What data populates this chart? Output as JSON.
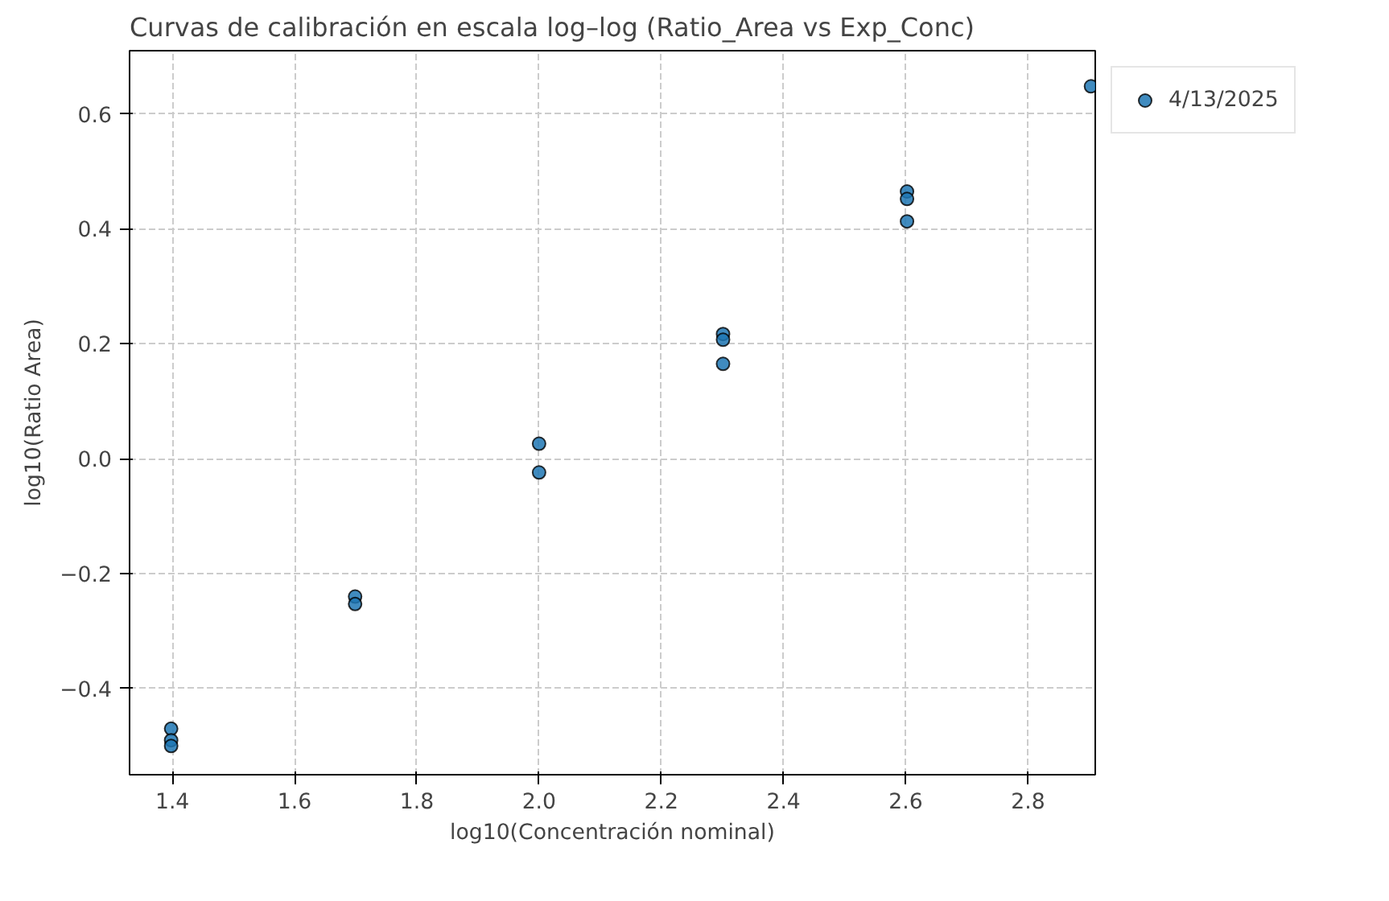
{
  "chart_data": {
    "type": "scatter",
    "title": "Curvas de calibración en escala log–log (Ratio_Area vs Exp_Conc)",
    "xlabel": "log10(Concentración nominal)",
    "ylabel": "log10(Ratio Area)",
    "series": [
      {
        "name": "4/13/2025",
        "color": "#1f77b4",
        "x": [
          1.398,
          1.398,
          1.398,
          1.699,
          1.699,
          2.0,
          2.0,
          2.301,
          2.301,
          2.301,
          2.602,
          2.602,
          2.602,
          2.903
        ],
        "values": [
          -0.47,
          -0.49,
          -0.5,
          -0.24,
          -0.253,
          0.026,
          -0.024,
          0.217,
          0.207,
          0.165,
          0.465,
          0.452,
          0.413,
          0.648
        ]
      }
    ],
    "xlim": [
      1.33,
      2.91
    ],
    "ylim": [
      -0.55,
      0.71
    ],
    "xticks": [
      1.4,
      1.6,
      1.8,
      {
        "value": 2,
        "label": "2.0"
      },
      2.2,
      2.4,
      2.6,
      2.8
    ],
    "yticks": [
      -0.4,
      -0.2,
      {
        "value": 0,
        "label": "0.0"
      },
      0.2,
      0.4,
      0.6
    ],
    "grid": true,
    "legend": "top right",
    "marker": "circle"
  }
}
